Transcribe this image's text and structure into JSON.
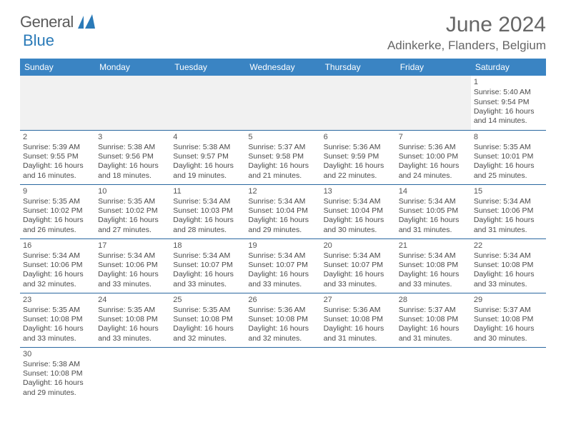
{
  "logo": {
    "word1": "General",
    "word2": "Blue"
  },
  "header": {
    "month_title": "June 2024",
    "location": "Adinkerke, Flanders, Belgium"
  },
  "colors": {
    "header_bg": "#3a84c3",
    "header_text": "#ffffff",
    "row_border": "#2a68a0",
    "blank_bg": "#f1f1f1",
    "text": "#4a4a4a",
    "title": "#666666",
    "logo_blue": "#2a7ab8"
  },
  "weekdays": [
    "Sunday",
    "Monday",
    "Tuesday",
    "Wednesday",
    "Thursday",
    "Friday",
    "Saturday"
  ],
  "labels": {
    "sunrise_prefix": "Sunrise: ",
    "sunset_prefix": "Sunset: ",
    "daylight_prefix": "Daylight: ",
    "and": "and ",
    "minutes_suffix": " minutes."
  },
  "weeks": [
    [
      null,
      null,
      null,
      null,
      null,
      null,
      {
        "day": "1",
        "sunrise": "5:40 AM",
        "sunset": "9:54 PM",
        "dl_h": "16 hours",
        "dl_m": "14"
      }
    ],
    [
      {
        "day": "2",
        "sunrise": "5:39 AM",
        "sunset": "9:55 PM",
        "dl_h": "16 hours",
        "dl_m": "16"
      },
      {
        "day": "3",
        "sunrise": "5:38 AM",
        "sunset": "9:56 PM",
        "dl_h": "16 hours",
        "dl_m": "18"
      },
      {
        "day": "4",
        "sunrise": "5:38 AM",
        "sunset": "9:57 PM",
        "dl_h": "16 hours",
        "dl_m": "19"
      },
      {
        "day": "5",
        "sunrise": "5:37 AM",
        "sunset": "9:58 PM",
        "dl_h": "16 hours",
        "dl_m": "21"
      },
      {
        "day": "6",
        "sunrise": "5:36 AM",
        "sunset": "9:59 PM",
        "dl_h": "16 hours",
        "dl_m": "22"
      },
      {
        "day": "7",
        "sunrise": "5:36 AM",
        "sunset": "10:00 PM",
        "dl_h": "16 hours",
        "dl_m": "24"
      },
      {
        "day": "8",
        "sunrise": "5:35 AM",
        "sunset": "10:01 PM",
        "dl_h": "16 hours",
        "dl_m": "25"
      }
    ],
    [
      {
        "day": "9",
        "sunrise": "5:35 AM",
        "sunset": "10:02 PM",
        "dl_h": "16 hours",
        "dl_m": "26"
      },
      {
        "day": "10",
        "sunrise": "5:35 AM",
        "sunset": "10:02 PM",
        "dl_h": "16 hours",
        "dl_m": "27"
      },
      {
        "day": "11",
        "sunrise": "5:34 AM",
        "sunset": "10:03 PM",
        "dl_h": "16 hours",
        "dl_m": "28"
      },
      {
        "day": "12",
        "sunrise": "5:34 AM",
        "sunset": "10:04 PM",
        "dl_h": "16 hours",
        "dl_m": "29"
      },
      {
        "day": "13",
        "sunrise": "5:34 AM",
        "sunset": "10:04 PM",
        "dl_h": "16 hours",
        "dl_m": "30"
      },
      {
        "day": "14",
        "sunrise": "5:34 AM",
        "sunset": "10:05 PM",
        "dl_h": "16 hours",
        "dl_m": "31"
      },
      {
        "day": "15",
        "sunrise": "5:34 AM",
        "sunset": "10:06 PM",
        "dl_h": "16 hours",
        "dl_m": "31"
      }
    ],
    [
      {
        "day": "16",
        "sunrise": "5:34 AM",
        "sunset": "10:06 PM",
        "dl_h": "16 hours",
        "dl_m": "32"
      },
      {
        "day": "17",
        "sunrise": "5:34 AM",
        "sunset": "10:06 PM",
        "dl_h": "16 hours",
        "dl_m": "33"
      },
      {
        "day": "18",
        "sunrise": "5:34 AM",
        "sunset": "10:07 PM",
        "dl_h": "16 hours",
        "dl_m": "33"
      },
      {
        "day": "19",
        "sunrise": "5:34 AM",
        "sunset": "10:07 PM",
        "dl_h": "16 hours",
        "dl_m": "33"
      },
      {
        "day": "20",
        "sunrise": "5:34 AM",
        "sunset": "10:07 PM",
        "dl_h": "16 hours",
        "dl_m": "33"
      },
      {
        "day": "21",
        "sunrise": "5:34 AM",
        "sunset": "10:08 PM",
        "dl_h": "16 hours",
        "dl_m": "33"
      },
      {
        "day": "22",
        "sunrise": "5:34 AM",
        "sunset": "10:08 PM",
        "dl_h": "16 hours",
        "dl_m": "33"
      }
    ],
    [
      {
        "day": "23",
        "sunrise": "5:35 AM",
        "sunset": "10:08 PM",
        "dl_h": "16 hours",
        "dl_m": "33"
      },
      {
        "day": "24",
        "sunrise": "5:35 AM",
        "sunset": "10:08 PM",
        "dl_h": "16 hours",
        "dl_m": "33"
      },
      {
        "day": "25",
        "sunrise": "5:35 AM",
        "sunset": "10:08 PM",
        "dl_h": "16 hours",
        "dl_m": "32"
      },
      {
        "day": "26",
        "sunrise": "5:36 AM",
        "sunset": "10:08 PM",
        "dl_h": "16 hours",
        "dl_m": "32"
      },
      {
        "day": "27",
        "sunrise": "5:36 AM",
        "sunset": "10:08 PM",
        "dl_h": "16 hours",
        "dl_m": "31"
      },
      {
        "day": "28",
        "sunrise": "5:37 AM",
        "sunset": "10:08 PM",
        "dl_h": "16 hours",
        "dl_m": "31"
      },
      {
        "day": "29",
        "sunrise": "5:37 AM",
        "sunset": "10:08 PM",
        "dl_h": "16 hours",
        "dl_m": "30"
      }
    ],
    [
      {
        "day": "30",
        "sunrise": "5:38 AM",
        "sunset": "10:08 PM",
        "dl_h": "16 hours",
        "dl_m": "29"
      },
      null,
      null,
      null,
      null,
      null,
      null
    ]
  ]
}
